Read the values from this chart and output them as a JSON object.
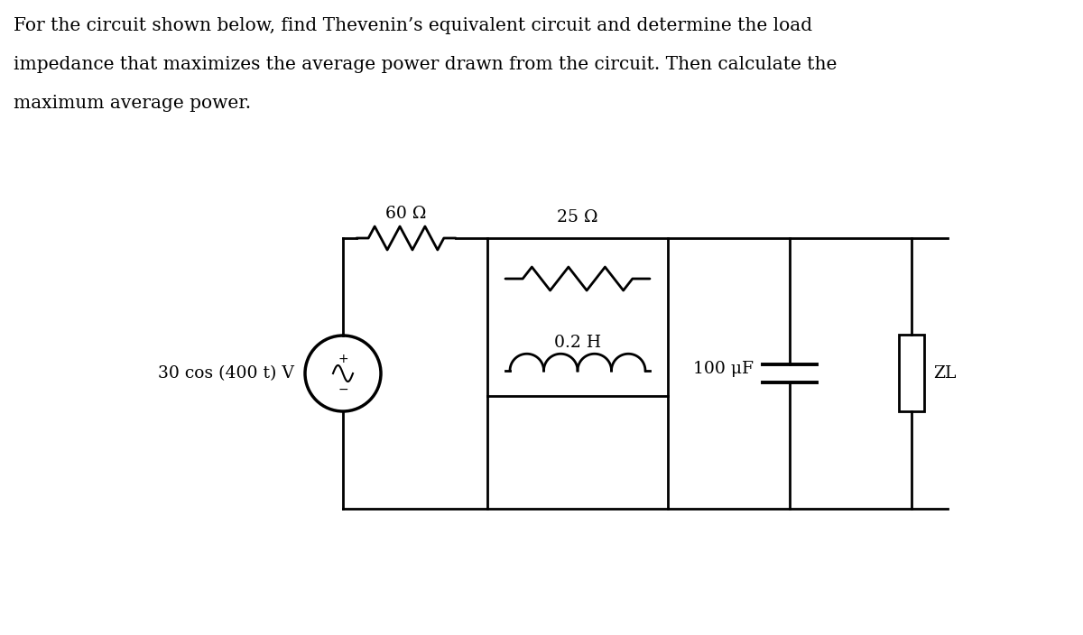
{
  "title_line1": "For the circuit shown below, find Thevenin’s equivalent circuit and determine the load",
  "title_line2": "impedance that maximizes the average power drawn from the circuit. Then calculate the",
  "title_line3": "maximum average power.",
  "label_25ohm": "25 Ω",
  "label_60ohm": "60 Ω",
  "label_02H": "0.2 H",
  "label_100uF": "100 μF",
  "label_source": "30 cos (400 t) V",
  "label_ZL": "ZL",
  "bg_color": "#ffffff",
  "line_color": "#000000",
  "text_color": "#000000",
  "font_size_text": 14.5,
  "font_size_labels": 13.5,
  "lw": 2.0
}
